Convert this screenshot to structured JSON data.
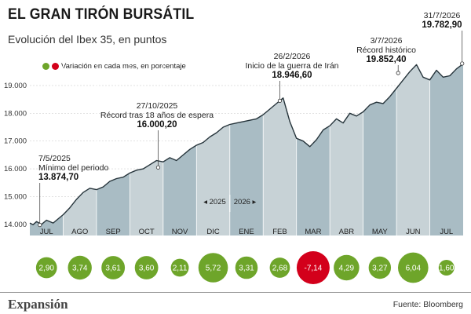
{
  "title": "EL GRAN TIRÓN BURSÁTIL",
  "subtitle": "Evolución del Ibex 35, en puntos",
  "legend": "Variación en cada mes, en porcentaje",
  "colors": {
    "area": "#a9bcc4",
    "area_alt": "#c7d2d6",
    "line": "#26343b",
    "positive": "#6ea52a",
    "negative": "#d3001b"
  },
  "brand": "Expansión",
  "source": "Fuente: Bloomberg",
  "year_marker": {
    "left": "2025",
    "right": "2026"
  },
  "chart_data": {
    "type": "area",
    "ylim": [
      13600,
      20100
    ],
    "yticks": [
      14000,
      15000,
      16000,
      17000,
      18000,
      19000
    ],
    "ytick_labels": [
      "14.000",
      "15.000",
      "16.000",
      "17.000",
      "18.000",
      "19.000"
    ],
    "months": [
      "JUL",
      "AGO",
      "SEP",
      "OCT",
      "NOV",
      "DIC",
      "ENE",
      "FEB",
      "MAR",
      "ABR",
      "MAY",
      "JUN",
      "JUL"
    ],
    "monthly_change": [
      {
        "month": "JUL",
        "value": 2.9,
        "label": "2,90"
      },
      {
        "month": "AGO",
        "value": 3.74,
        "label": "3,74"
      },
      {
        "month": "SEP",
        "value": 3.61,
        "label": "3,61"
      },
      {
        "month": "OCT",
        "value": 3.6,
        "label": "3,60"
      },
      {
        "month": "NOV",
        "value": 2.11,
        "label": "2,11"
      },
      {
        "month": "DIC",
        "value": 5.72,
        "label": "5,72"
      },
      {
        "month": "ENE",
        "value": 3.31,
        "label": "3,31"
      },
      {
        "month": "FEB",
        "value": 2.68,
        "label": "2,68"
      },
      {
        "month": "MAR",
        "value": -7.14,
        "label": "-7,14"
      },
      {
        "month": "ABR",
        "value": 4.29,
        "label": "4,29"
      },
      {
        "month": "MAY",
        "value": 3.27,
        "label": "3,27"
      },
      {
        "month": "JUN",
        "value": 6.04,
        "label": "6,04"
      },
      {
        "month": "JUL",
        "value": 1.6,
        "label": "1,60"
      }
    ],
    "series": [
      {
        "x": [
          0,
          0.1,
          0.2,
          0.35,
          0.5,
          0.7,
          0.9,
          1.0,
          1.2,
          1.4,
          1.6,
          1.8,
          2.0,
          2.2,
          2.4,
          2.6,
          2.8,
          3.0,
          3.2,
          3.4,
          3.6,
          3.8,
          4.0,
          4.2,
          4.4,
          4.6,
          4.8,
          5.0,
          5.2,
          5.4,
          5.6,
          5.8,
          6.0,
          6.2,
          6.4,
          6.6,
          6.8,
          7.0,
          7.2,
          7.4,
          7.6,
          7.8,
          8.0,
          8.2,
          8.4,
          8.6,
          8.8,
          9.0,
          9.2,
          9.4,
          9.6,
          9.8,
          10.0,
          10.2,
          10.4,
          10.6,
          10.8,
          11.0,
          11.2,
          11.4,
          11.6,
          11.8,
          12.0,
          12.2,
          12.4,
          12.6,
          12.8,
          13.0
        ],
        "y": [
          14050,
          13990,
          14100,
          14000,
          14150,
          14050,
          14250,
          14350,
          14600,
          14900,
          15150,
          15300,
          15250,
          15350,
          15550,
          15650,
          15700,
          15850,
          15950,
          16000,
          16150,
          16300,
          16250,
          16400,
          16300,
          16500,
          16700,
          16850,
          16950,
          17150,
          17300,
          17500,
          17600,
          17650,
          17700,
          17750,
          17800,
          17950,
          18150,
          18350,
          18550,
          17700,
          17100,
          17000,
          16800,
          17050,
          17400,
          17550,
          17800,
          17650,
          18000,
          17900,
          18050,
          18300,
          18400,
          18350,
          18600,
          18900,
          19200,
          19500,
          19750,
          19300,
          19200,
          19550,
          19300,
          19350,
          19600,
          19780
        ]
      }
    ],
    "annotations": [
      {
        "date": "7/5/2025",
        "text": "Mínimo del periodo",
        "value": "13.874,70"
      },
      {
        "date": "27/10/2025",
        "text": "Récord tras 18 años de espera",
        "value": "16.000,20"
      },
      {
        "date": "26/2/2026",
        "text": "Inicio de la guerra de Irán",
        "value": "18.946,60"
      },
      {
        "date": "3/7/2026",
        "text": "Récord histórico",
        "value": "19.852,40"
      },
      {
        "date": "31/7/2026",
        "text": "",
        "value": "19.782,90"
      }
    ]
  }
}
